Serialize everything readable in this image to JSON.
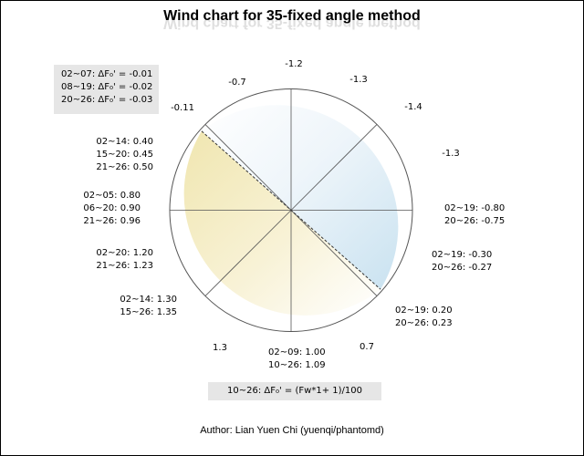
{
  "title": "Wind chart for 35-fixed angle method",
  "author": "Author: Lian Yuen Chi (yuenqi/phantomd)",
  "formula": "10~26: ΔF₀' = (Fw*1+ 1)/100",
  "legend": [
    "02~07: ΔF₀' = -0.01",
    "08~19: ΔF₀' = -0.02",
    "20~26: ΔF₀' = -0.03"
  ],
  "labels": {
    "n": "-1.2",
    "nne": "-1.3",
    "ne": "-1.4",
    "ene": "-1.3",
    "e": [
      "02~19: -0.80",
      "20~26: -0.75"
    ],
    "ese": [
      "02~19: -0.30",
      "20~26: -0.27"
    ],
    "se": [
      "02~19: 0.20",
      "20~26: 0.23"
    ],
    "sse": "0.7",
    "s": [
      "02~09: 1.00",
      "10~26: 1.09"
    ],
    "ssw": "1.3",
    "sw": [
      "02~14: 1.30",
      "15~26: 1.35"
    ],
    "wsw": [
      "02~20: 1.20",
      "21~26: 1.23"
    ],
    "w": [
      "02~05: 0.80",
      "06~20: 0.90",
      "21~26: 0.96"
    ],
    "wnw": [
      "02~14: 0.40",
      "15~20: 0.45",
      "21~26: 0.50"
    ],
    "nw": "-0.11",
    "nnw": "-0.7"
  },
  "colors": {
    "headwind": "#d7e9f3",
    "tailwind": "#f3ecc2",
    "box": "#e6e6e6"
  }
}
